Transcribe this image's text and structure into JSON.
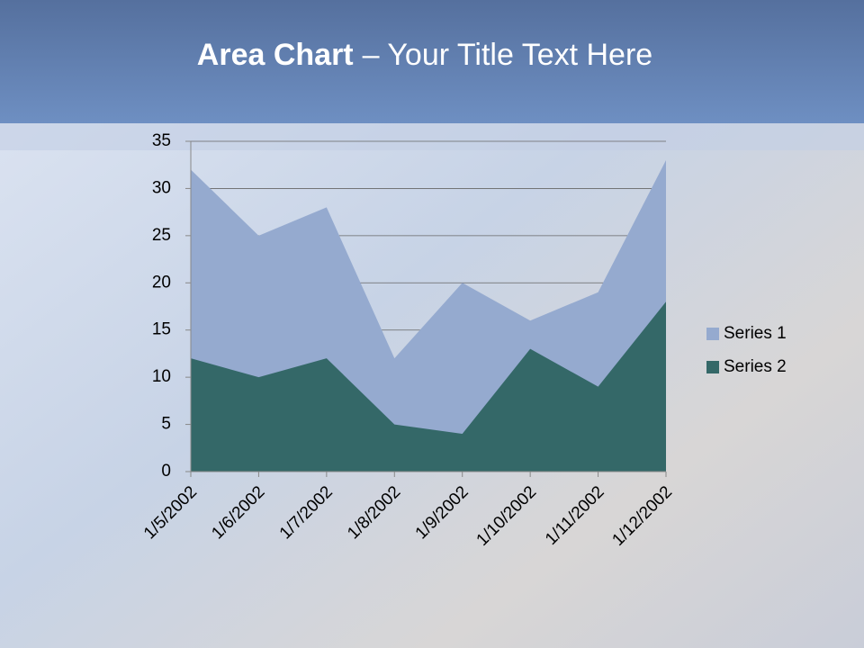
{
  "chart_data": {
    "type": "area",
    "title": {
      "bold": "Area Chart",
      "rest": "– Your Title Text Here"
    },
    "categories": [
      "1/5/2002",
      "1/6/2002",
      "1/7/2002",
      "1/8/2002",
      "1/9/2002",
      "1/10/2002",
      "1/11/2002",
      "1/12/2002"
    ],
    "series": [
      {
        "name": "Series 1",
        "color": "#95aacf",
        "values": [
          32,
          25,
          28,
          12,
          20,
          16,
          19,
          33
        ]
      },
      {
        "name": "Series 2",
        "color": "#346868",
        "values": [
          12,
          10,
          12,
          5,
          4,
          13,
          9,
          18
        ]
      }
    ],
    "ylim": [
      0,
      35
    ],
    "yticks": [
      0,
      5,
      10,
      15,
      20,
      25,
      30,
      35
    ],
    "grid": true,
    "legend": "right"
  }
}
